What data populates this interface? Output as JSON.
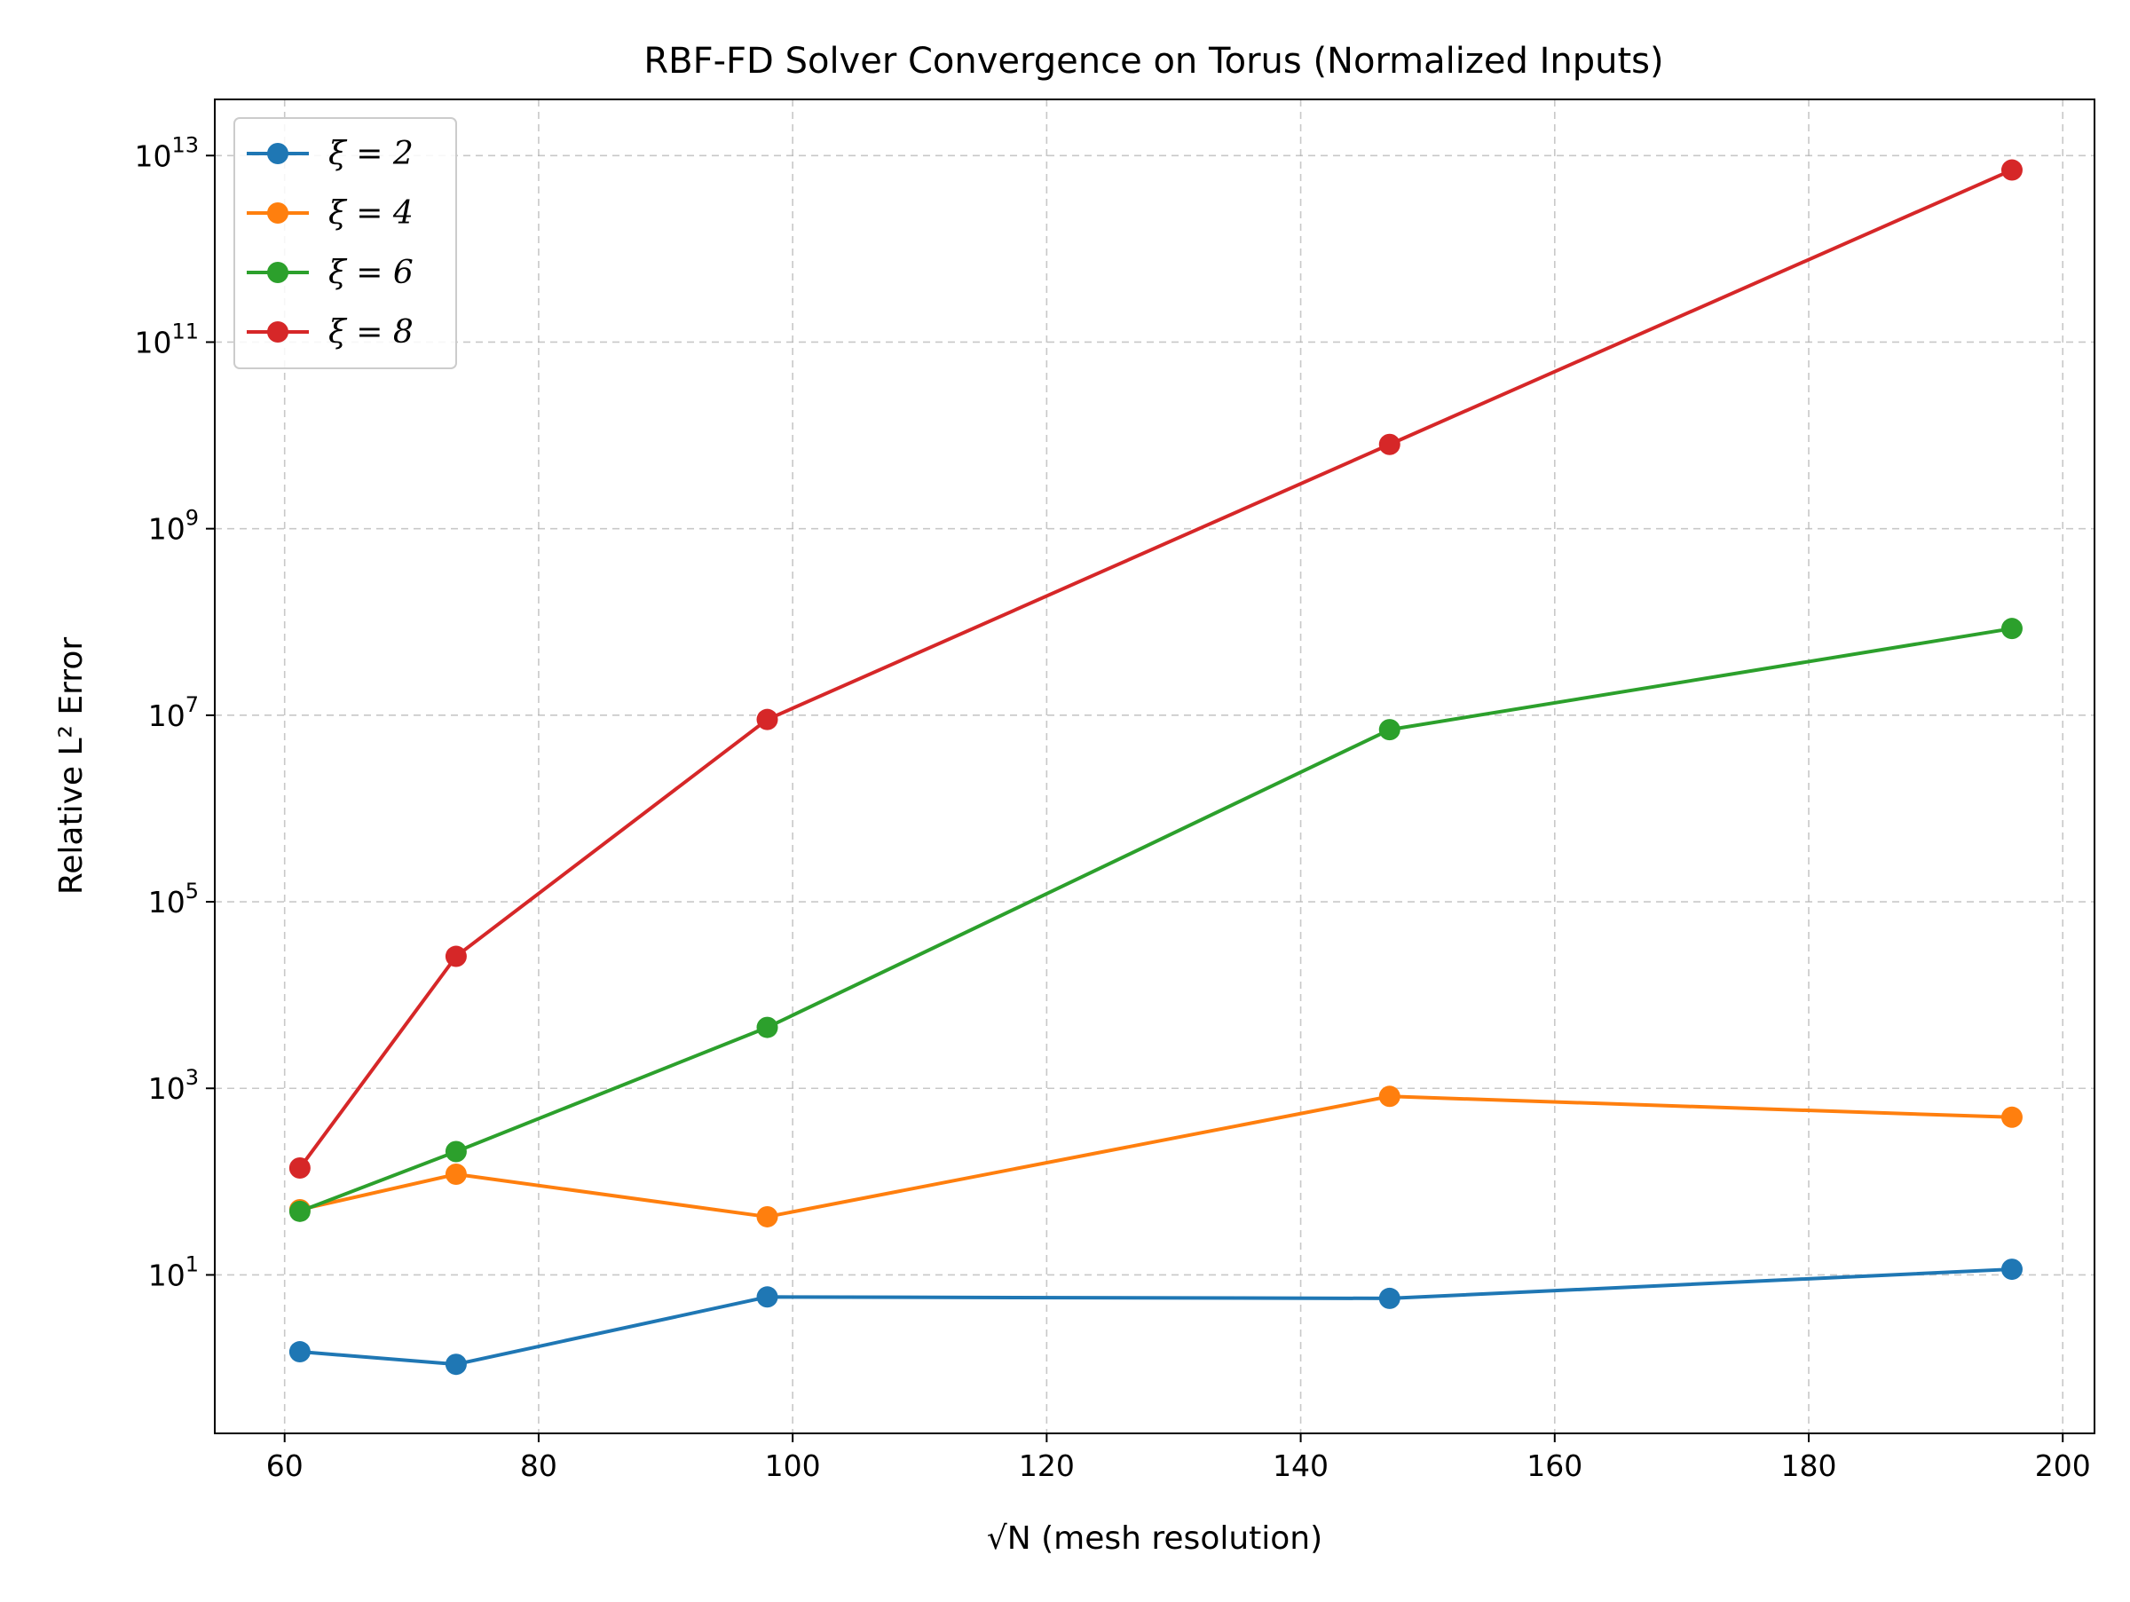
{
  "chart_data": {
    "type": "line",
    "title": "RBF-FD Solver Convergence on Torus (Normalized Inputs)",
    "xlabel": "√N (mesh resolution)",
    "ylabel": "Relative L² Error",
    "x": [
      61.2,
      73.5,
      98,
      147,
      196
    ],
    "xlim": [
      54.5,
      202.5
    ],
    "ylim": [
      0.2,
      40000000000000
    ],
    "yscale": "log",
    "xticks": [
      "60",
      "80",
      "100",
      "120",
      "140",
      "160",
      "180",
      "200"
    ],
    "yticks": [
      {
        "base": "10",
        "exp": "1"
      },
      {
        "base": "10",
        "exp": "3"
      },
      {
        "base": "10",
        "exp": "5"
      },
      {
        "base": "10",
        "exp": "7"
      },
      {
        "base": "10",
        "exp": "9"
      },
      {
        "base": "10",
        "exp": "11"
      },
      {
        "base": "10",
        "exp": "13"
      }
    ],
    "grid": true,
    "legend_position": "top-left",
    "series": [
      {
        "name": "ξ = 2",
        "color": "#1f77b4",
        "values": [
          1.5,
          1.1,
          5.8,
          5.6,
          11.5
        ]
      },
      {
        "name": "ξ = 4",
        "color": "#ff7f0e",
        "values": [
          50,
          120,
          42,
          820,
          490
        ]
      },
      {
        "name": "ξ = 6",
        "color": "#2ca02c",
        "values": [
          48,
          210,
          4500,
          7000000,
          85000000
        ]
      },
      {
        "name": "ξ = 8",
        "color": "#d62728",
        "values": [
          140,
          26000,
          9000000,
          8000000000,
          7000000000000
        ]
      }
    ]
  }
}
